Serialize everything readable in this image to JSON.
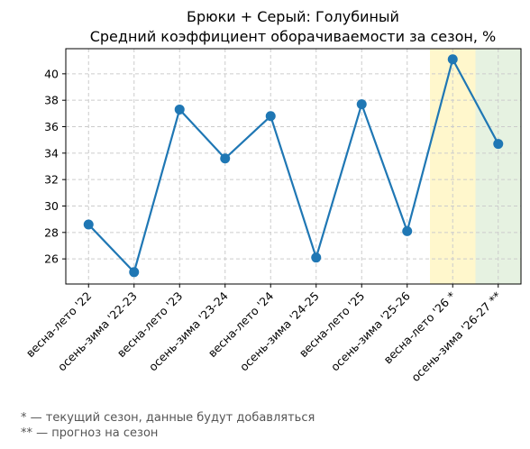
{
  "chart_data": {
    "type": "line",
    "title": "Брюки + Серый: Голубиный",
    "subtitle": "Средний коэффициент оборачиваемости за сезон, %",
    "xlabel": "",
    "ylabel": "",
    "categories": [
      "весна-лето '22",
      "осень-зима '22-23",
      "весна-лето '23",
      "осень-зима '23-24",
      "весна-лето '24",
      "осень-зима '24-25",
      "весна-лето '25",
      "осень-зима '25-26",
      "весна-лето '26 *",
      "осень-зима '26-27 **"
    ],
    "series": [
      {
        "values": [
          28.6,
          25.0,
          37.3,
          33.6,
          36.8,
          26.1,
          37.7,
          28.1,
          41.1,
          34.7
        ],
        "color": "#1f77b4"
      }
    ],
    "ylim": [
      24.1,
      41.9
    ],
    "yticks": [
      26,
      28,
      30,
      32,
      34,
      36,
      38,
      40
    ],
    "grid": true,
    "highlights": [
      {
        "category": "весна-лето '26 *",
        "color": "#fff7cc"
      },
      {
        "category": "осень-зима '26-27 **",
        "color": "#e6f2e1"
      }
    ]
  },
  "footnotes": [
    "* — текущий сезон, данные будут добавляться",
    "** — прогноз на сезон"
  ]
}
